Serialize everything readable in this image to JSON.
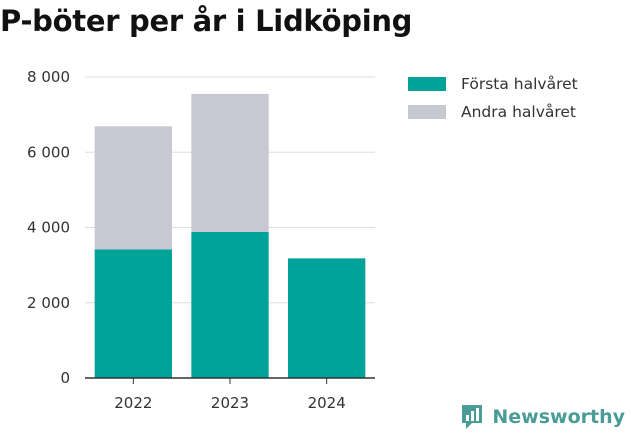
{
  "chart_data": {
    "type": "bar",
    "stacked": true,
    "title": "P-böter per år i Lidköping",
    "xlabel": "",
    "ylabel": "",
    "categories": [
      "2022",
      "2023",
      "2024"
    ],
    "series": [
      {
        "name": "Första halvåret",
        "values": [
          3420,
          3880,
          3180
        ],
        "color": "#00a39a"
      },
      {
        "name": "Andra halvåret",
        "values": [
          3270,
          3670,
          0
        ],
        "color": "#c8c8d2"
      }
    ],
    "ylim": [
      0,
      8000
    ],
    "yticks": [
      0,
      2000,
      4000,
      6000,
      8000
    ],
    "ytick_labels": [
      "0",
      "2 000",
      "4 000",
      "6 000",
      "8 000"
    ],
    "grid": true,
    "legend_position": "top-right"
  },
  "brand": {
    "name": "Newsworthy",
    "icon": "newsworthy-logo-icon",
    "color": "#4a9c97"
  }
}
